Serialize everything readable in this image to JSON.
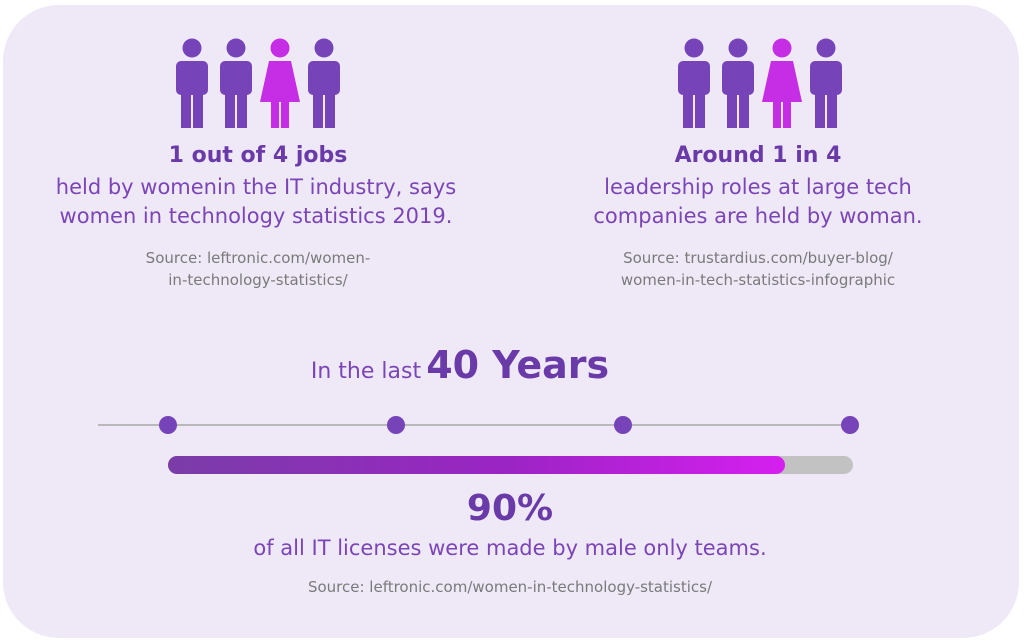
{
  "stats": [
    {
      "title": "1 out of 4 jobs",
      "lines": [
        "held by womenin the IT industry, says",
        "women in technology statistics 2019."
      ],
      "source_lines": [
        "Source: leftronic.com/women-",
        "in-technology-statistics/"
      ]
    },
    {
      "title": "Around 1 in 4",
      "lines": [
        "leadership roles at large tech",
        "companies are held by woman."
      ],
      "source_lines": [
        "Source: trustardius.com/buyer-blog/",
        "women-in-tech-statistics-infographic"
      ]
    }
  ],
  "timeline": {
    "heading_small": "In the last",
    "heading_big": "40 Years",
    "percent": "90%",
    "progress": 0.9,
    "description": "of all IT licenses were made by male only teams.",
    "source": "Source: leftronic.com/women-in-technology-statistics/"
  },
  "colors": {
    "man": "#7644b8",
    "woman": "#c62ee6",
    "accent": "#6a3aa8",
    "background": "#efe9f7"
  },
  "icons": [
    "man-icon",
    "man-icon",
    "woman-icon",
    "man-icon"
  ]
}
